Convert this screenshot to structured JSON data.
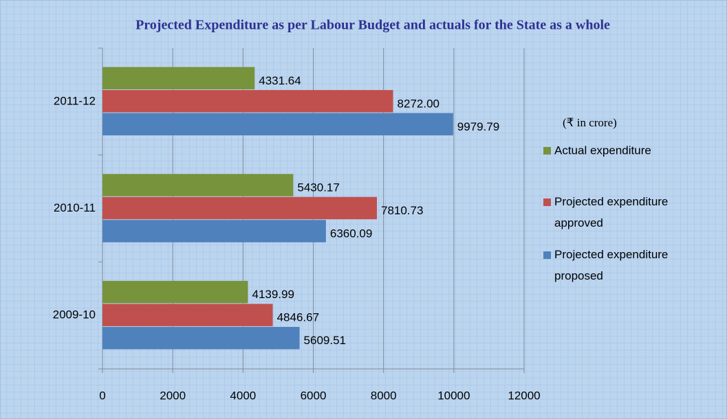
{
  "chart_data": {
    "type": "hbar",
    "title": "Projected Expenditure as per Labour Budget and actuals for the State as a whole",
    "annotation": "(₹ in crore)",
    "categories": [
      "2009-10",
      "2010-11",
      "2011-12"
    ],
    "series": [
      {
        "name": "Actual expenditure",
        "color": "#77933c",
        "values": [
          4139.99,
          5430.17,
          4331.64
        ],
        "value_labels": [
          "4139.99",
          "5430.17",
          "4331.64"
        ]
      },
      {
        "name": "Projected expenditure approved",
        "color": "#c0504d",
        "values": [
          4846.67,
          7810.73,
          8272.0
        ],
        "value_labels": [
          "4846.67",
          "7810.73",
          "8272.00"
        ]
      },
      {
        "name": "Projected expenditure proposed",
        "color": "#4f81bd",
        "values": [
          5609.51,
          6360.09,
          9979.79
        ],
        "value_labels": [
          "5609.51",
          "6360.09",
          "9979.79"
        ]
      }
    ],
    "xlim": [
      0,
      12000
    ],
    "xticks": [
      0,
      2000,
      4000,
      6000,
      8000,
      10000,
      12000
    ],
    "grid": true,
    "legend": "right"
  }
}
